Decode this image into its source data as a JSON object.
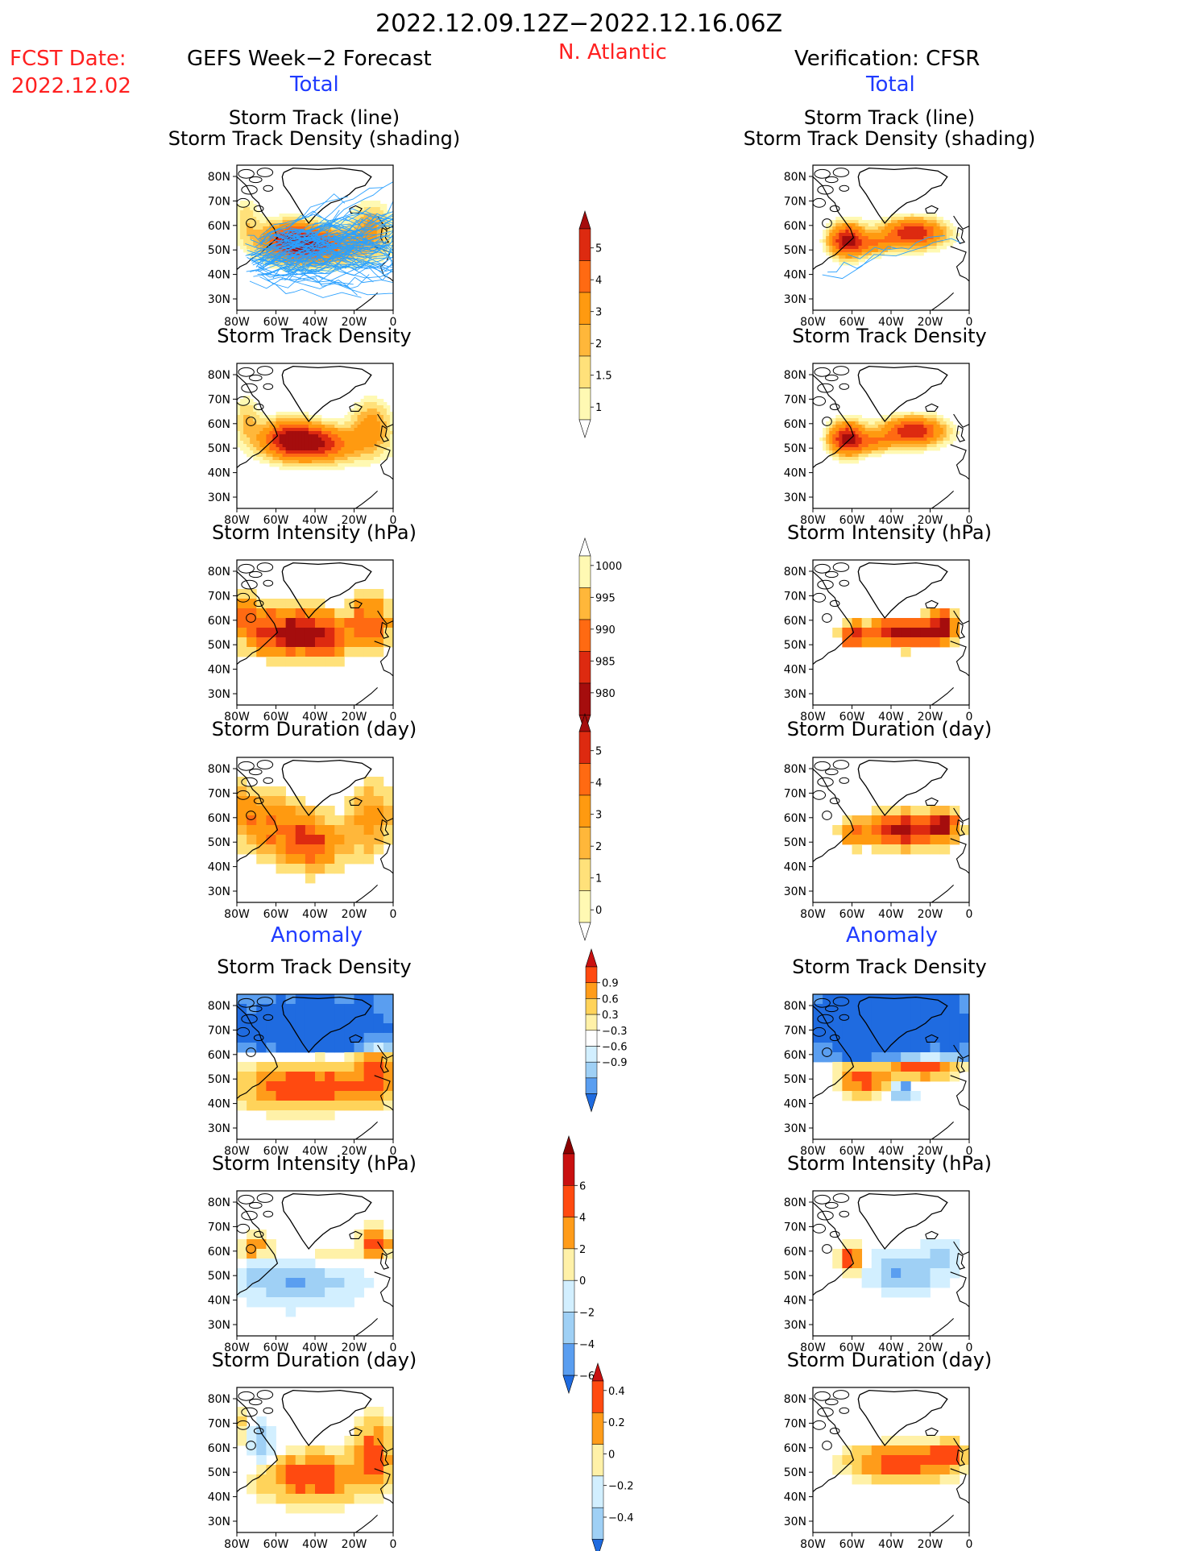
{
  "header": {
    "date_range": "2022.12.09.12Z−2022.12.16.06Z",
    "fcst_label": "FCST Date:",
    "fcst_date": "2022.12.02",
    "forecast_title": "GEFS Week−2 Forecast",
    "region": "N. Atlantic",
    "verification_title": "Verification: CFSR",
    "total_label": "Total",
    "anomaly_label": "Anomaly"
  },
  "panel_titles": {
    "track_line": "Storm Track (line)",
    "track_shading": "Storm Track Density (shading)",
    "density": "Storm Track Density",
    "intensity": "Storm Intensity (hPa)",
    "duration": "Storm Duration (day)"
  },
  "axes": {
    "lat_ticks": [
      "80N",
      "70N",
      "60N",
      "50N",
      "40N",
      "30N"
    ],
    "lon_ticks": [
      "80W",
      "60W",
      "40W",
      "20W",
      "0"
    ]
  },
  "colors": {
    "seq": [
      "#fff9b3",
      "#ffe17a",
      "#ffb73a",
      "#ff9a10",
      "#ff6a12",
      "#dd2a10",
      "#a50d0d"
    ],
    "div_neg": [
      "#1f6be0",
      "#5a9ef0",
      "#9fd0f5",
      "#d2efff"
    ],
    "div_pos": [
      "#fff1a8",
      "#ffd35a",
      "#ff9c1a",
      "#ff4a10",
      "#c91010",
      "#8c0000"
    ],
    "track": "#2aa0ff"
  },
  "chart_data": [
    {
      "type": "heatmap",
      "name": "gefs_total_track",
      "ylim": [
        25,
        85
      ],
      "xlim": [
        -80,
        0
      ]
    },
    {
      "type": "heatmap",
      "name": "gefs_total_density"
    },
    {
      "type": "heatmap",
      "name": "gefs_total_intensity"
    },
    {
      "type": "heatmap",
      "name": "gefs_total_duration"
    },
    {
      "type": "heatmap",
      "name": "gefs_anom_density"
    },
    {
      "type": "heatmap",
      "name": "gefs_anom_intensity"
    },
    {
      "type": "heatmap",
      "name": "gefs_anom_duration"
    },
    {
      "type": "heatmap",
      "name": "cfsr_total_track"
    },
    {
      "type": "heatmap",
      "name": "cfsr_total_density"
    },
    {
      "type": "heatmap",
      "name": "cfsr_total_intensity"
    },
    {
      "type": "heatmap",
      "name": "cfsr_total_duration"
    },
    {
      "type": "heatmap",
      "name": "cfsr_anom_density"
    },
    {
      "type": "heatmap",
      "name": "cfsr_anom_intensity"
    },
    {
      "type": "heatmap",
      "name": "cfsr_anom_duration"
    }
  ],
  "colorbars": {
    "density_total": [
      "5",
      "4",
      "3",
      "2",
      "1.5",
      "1"
    ],
    "intensity_total": [
      "1000",
      "995",
      "990",
      "985",
      "980"
    ],
    "duration_total": [
      "5",
      "4",
      "3",
      "2",
      "1",
      "0"
    ],
    "density_anom": [
      "0.9",
      "0.6",
      "0.3",
      "−0.3",
      "−0.6",
      "−0.9"
    ],
    "intensity_anom": [
      "6",
      "4",
      "2",
      "0",
      "−2",
      "−4",
      "−6"
    ],
    "duration_anom": [
      "0.4",
      "0.2",
      "0",
      "−0.2",
      "−0.4"
    ]
  }
}
